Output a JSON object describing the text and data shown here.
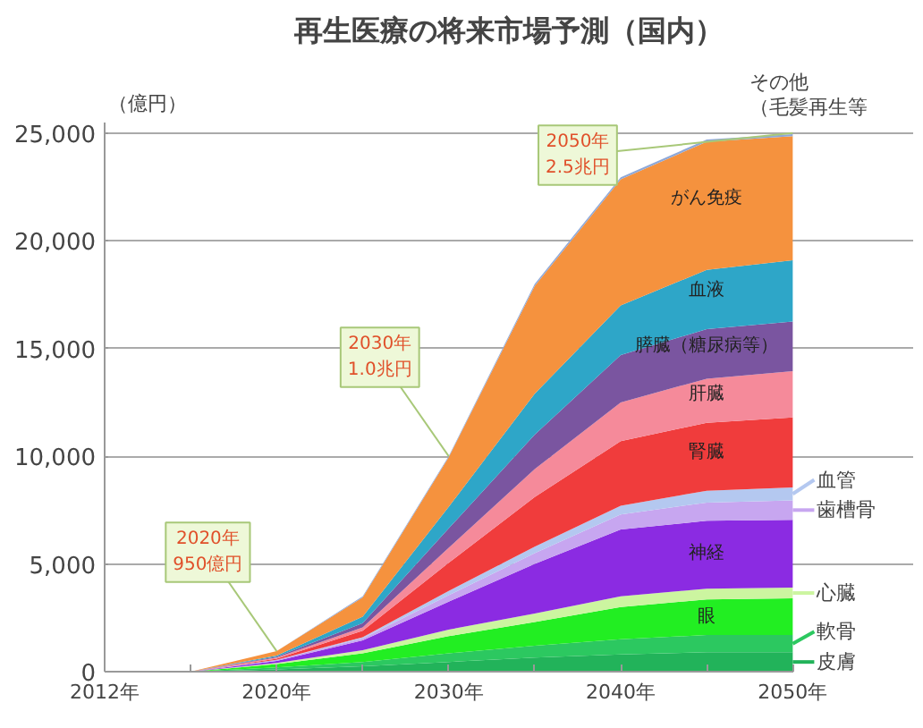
{
  "chart_data": {
    "type": "area",
    "stacked": true,
    "title": "再生医療の将来市場予測（国内）",
    "ylabel": "（億円）",
    "categories": [
      "2012年",
      null,
      "2020年",
      null,
      "2030年",
      null,
      "2040年",
      null,
      "2050年"
    ],
    "ylim": [
      0,
      25500
    ],
    "yticks": [
      0,
      {
        "value": 5000,
        "label": "5,000"
      },
      {
        "value": 10000,
        "label": "10,000"
      },
      {
        "value": 15000,
        "label": "15,000"
      },
      {
        "value": 20000,
        "label": "20,000"
      },
      {
        "value": 25000,
        "label": "25,000"
      }
    ],
    "grid": "y",
    "legend": "right",
    "series": [
      {
        "name": "皮膚",
        "color": "#22b35a",
        "values": [
          0,
          0,
          100,
          250,
          450,
          650,
          800,
          900,
          900
        ]
      },
      {
        "name": "軟骨",
        "color": "#2cc860",
        "values": [
          0,
          0,
          100,
          200,
          400,
          550,
          700,
          800,
          800
        ]
      },
      {
        "name": "眼",
        "color": "#22ee22",
        "values": [
          0,
          0,
          150,
          400,
          800,
          1100,
          1500,
          1650,
          1700
        ]
      },
      {
        "name": "心臓",
        "color": "#ccf5a0",
        "values": [
          0,
          0,
          50,
          150,
          300,
          400,
          500,
          500,
          500
        ]
      },
      {
        "name": "神経",
        "color": "#8b2be2",
        "values": [
          0,
          0,
          100,
          450,
          1300,
          2300,
          3100,
          3150,
          3150
        ]
      },
      {
        "name": "歯槽骨",
        "color": "#c7a6f0",
        "values": [
          0,
          0,
          50,
          100,
          300,
          500,
          700,
          850,
          900
        ]
      },
      {
        "name": "血管",
        "color": "#b4c8f0",
        "values": [
          0,
          0,
          0,
          50,
          200,
          300,
          400,
          550,
          600
        ]
      },
      {
        "name": "腎臓",
        "color": "#f03c3c",
        "values": [
          0,
          0,
          50,
          300,
          1300,
          2300,
          3000,
          3150,
          3250
        ]
      },
      {
        "name": "肝臓",
        "color": "#f58a9a",
        "values": [
          0,
          0,
          50,
          150,
          700,
          1300,
          1800,
          2050,
          2150
        ]
      },
      {
        "name": "膵臓（糖尿病等）",
        "color": "#7a55a0",
        "values": [
          0,
          0,
          50,
          200,
          900,
          1600,
          2200,
          2300,
          2300
        ]
      },
      {
        "name": "血液",
        "color": "#2ea6c8",
        "values": [
          0,
          0,
          50,
          300,
          1000,
          1900,
          2300,
          2750,
          2850
        ]
      },
      {
        "name": "がん免疫",
        "color": "#f5923e",
        "values": [
          0,
          0,
          200,
          900,
          2300,
          5000,
          5850,
          5950,
          5750
        ]
      },
      {
        "name": "その他（毛髪再生等",
        "color": "#8ea8d8",
        "values": [
          0,
          0,
          0,
          50,
          50,
          100,
          100,
          100,
          100
        ]
      }
    ],
    "annotations": [
      {
        "text": "2020年\n950億円",
        "x": "2020年",
        "y": 950
      },
      {
        "text": "2030年\n1.0兆円",
        "x": "2030年",
        "y": 10000
      },
      {
        "text": "2050年\n2.5兆円",
        "x": "2050年",
        "y": 25000
      }
    ]
  }
}
